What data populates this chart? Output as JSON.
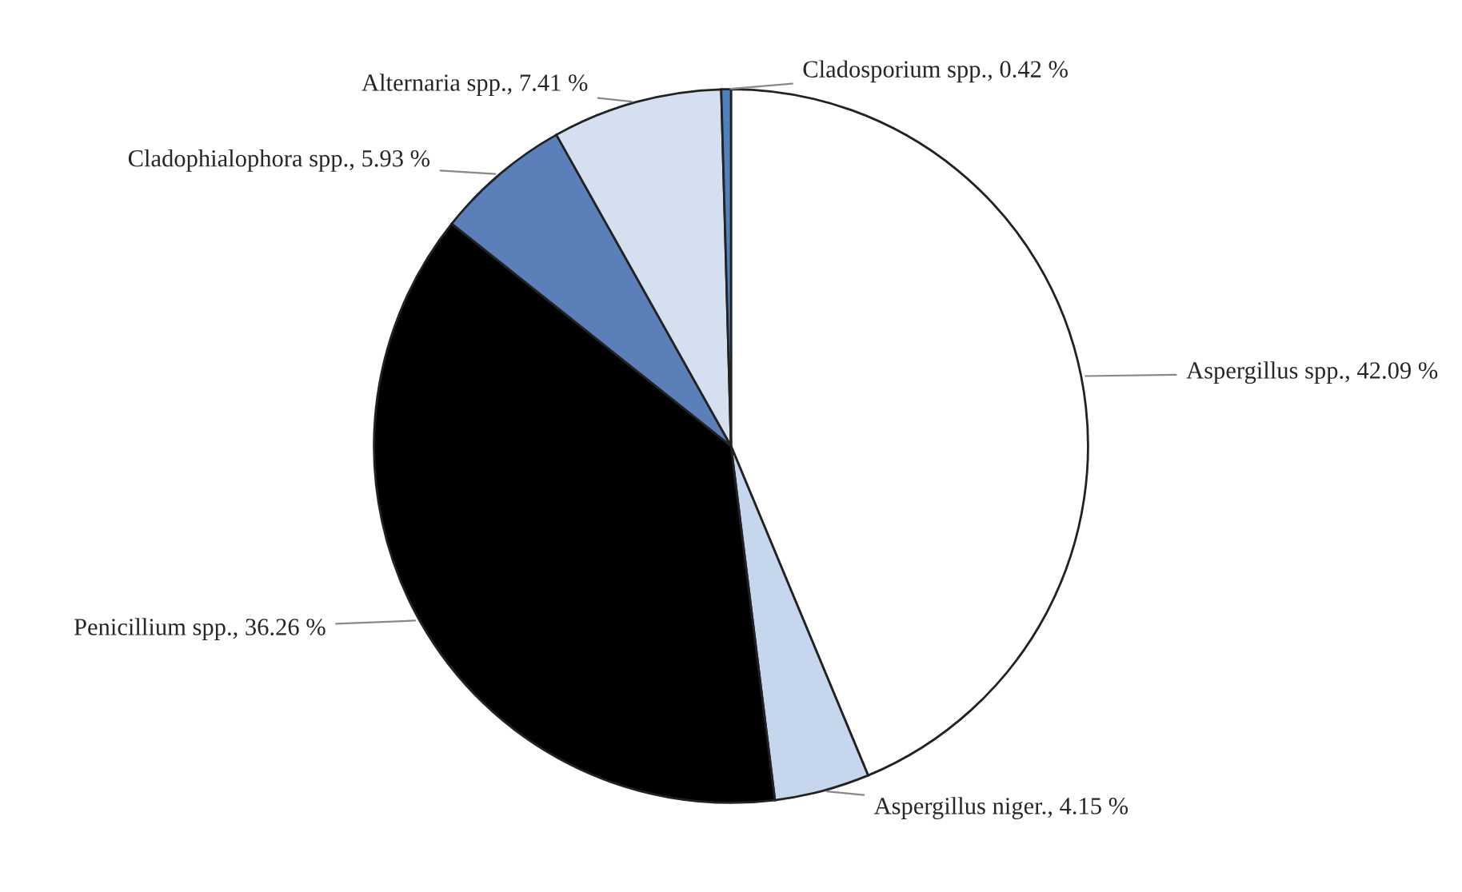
{
  "chart_data": {
    "type": "pie",
    "categories": [
      "Aspergillus spp.",
      "Aspergillus niger.",
      "Penicillium spp.",
      "Cladophialophora spp.",
      "Alternaria spp.",
      "Cladosporium spp."
    ],
    "values": [
      42.09,
      4.15,
      36.26,
      5.93,
      7.41,
      0.42
    ],
    "value_labels": [
      "42.09 %",
      "4.15 %",
      "36.26 %",
      "5.93 %",
      "7.41 %",
      "0.42 %"
    ],
    "colors": [
      "#ffffff",
      "#c6d6ec",
      "#000000",
      "#5b7fb8",
      "#d4e0f0",
      "#4f81bd"
    ]
  }
}
